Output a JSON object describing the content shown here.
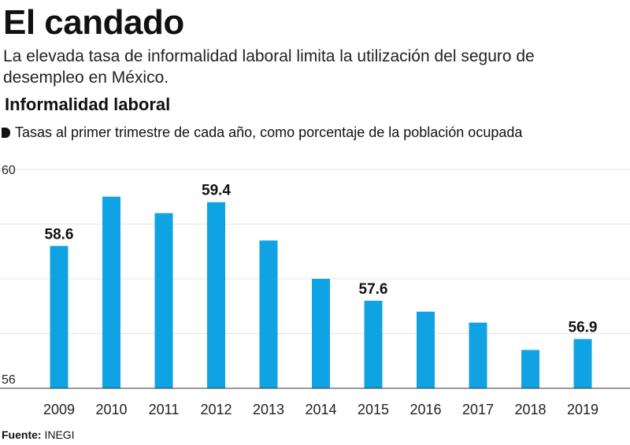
{
  "header": {
    "title": "El candado",
    "subtitle": "La elevada tasa de informalidad laboral limita la utilización del seguro de desempleo en México."
  },
  "chart_header": {
    "title": "Informalidad laboral",
    "subtitle": "Tasas al primer trimestre de cada año, como porcentaje de la población ocupada"
  },
  "footer": {
    "source_label": "Fuente:",
    "source_value": "INEGI"
  },
  "chart_data": {
    "type": "bar",
    "title": "Informalidad laboral",
    "subtitle": "Tasas al primer trimestre de cada año, como porcentaje de la población ocupada",
    "categories": [
      "2009",
      "2010",
      "2011",
      "2012",
      "2013",
      "2014",
      "2015",
      "2016",
      "2017",
      "2018",
      "2019"
    ],
    "values": [
      58.6,
      59.5,
      59.2,
      59.4,
      58.7,
      58.0,
      57.6,
      57.4,
      57.2,
      56.7,
      56.9
    ],
    "data_labels": [
      {
        "index": 0,
        "text": "58.6"
      },
      {
        "index": 3,
        "text": "59.4"
      },
      {
        "index": 6,
        "text": "57.6"
      },
      {
        "index": 10,
        "text": "56.9"
      }
    ],
    "ylim": [
      56,
      60
    ],
    "yticks": [
      56,
      60
    ],
    "grid": true,
    "bar_color": "#0fa3e4",
    "grid_color": "#e4e4e4",
    "xlabel": "",
    "ylabel": ""
  }
}
